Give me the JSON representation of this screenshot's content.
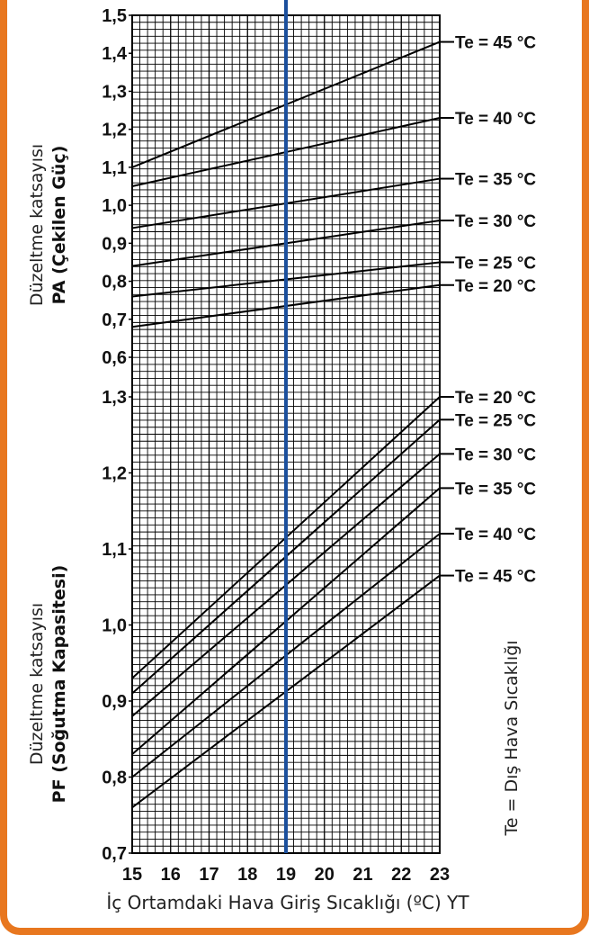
{
  "colors": {
    "frame": "#e8771f",
    "marker": "#1b4f9c",
    "grid": "#000000"
  },
  "chart_data": [
    {
      "type": "line",
      "panel": "PA",
      "ylabel_line1": "Düzeltme katsayısı",
      "ylabel_line2": "PA (Çekilen Güç)",
      "ylim": [
        0.55,
        1.5
      ],
      "yticks": [
        "1,5",
        "1,4",
        "1,3",
        "1,2",
        "1,1",
        "1,0",
        "0,9",
        "0,8",
        "0,7",
        "0,6"
      ],
      "ytick_values": [
        1.5,
        1.4,
        1.3,
        1.2,
        1.1,
        1.0,
        0.9,
        0.8,
        0.7,
        0.6
      ],
      "x": [
        15,
        23
      ],
      "series": [
        {
          "name": "Te = 45 °C",
          "values": [
            1.1,
            1.43
          ]
        },
        {
          "name": "Te = 40 °C",
          "values": [
            1.05,
            1.23
          ]
        },
        {
          "name": "Te = 35 °C",
          "values": [
            0.94,
            1.07
          ]
        },
        {
          "name": "Te = 30 °C",
          "values": [
            0.84,
            0.96
          ]
        },
        {
          "name": "Te = 25 °C",
          "values": [
            0.76,
            0.85
          ]
        },
        {
          "name": "Te = 20 °C",
          "values": [
            0.68,
            0.79
          ]
        }
      ]
    },
    {
      "type": "line",
      "panel": "PF",
      "ylabel_line1": "Düzeltme katsayısı",
      "ylabel_line2": "PF (Soğutma Kapasitesi)",
      "ylim": [
        0.7,
        1.3
      ],
      "yticks": [
        "1,3",
        "1,2",
        "1,1",
        "1,0",
        "0,9",
        "0,8",
        "0,7"
      ],
      "ytick_values": [
        1.3,
        1.2,
        1.1,
        1.0,
        0.9,
        0.8,
        0.7
      ],
      "x": [
        15,
        23
      ],
      "series": [
        {
          "name": "Te = 20 °C",
          "values": [
            0.93,
            1.3
          ]
        },
        {
          "name": "Te = 25 °C",
          "values": [
            0.91,
            1.27
          ]
        },
        {
          "name": "Te = 30 °C",
          "values": [
            0.88,
            1.225
          ]
        },
        {
          "name": "Te = 35 °C",
          "values": [
            0.83,
            1.18
          ]
        },
        {
          "name": "Te = 40 °C",
          "values": [
            0.8,
            1.12
          ]
        },
        {
          "name": "Te = 45 °C",
          "values": [
            0.76,
            1.065
          ]
        }
      ]
    }
  ],
  "xaxis": {
    "xlim": [
      15,
      23
    ],
    "ticks": [
      "15",
      "16",
      "17",
      "18",
      "19",
      "20",
      "21",
      "22",
      "23"
    ],
    "tick_values": [
      15,
      16,
      17,
      18,
      19,
      20,
      21,
      22,
      23
    ],
    "label": "İç Ortamdaki Hava Giriş Sıcaklığı (ºC) YT",
    "marker_value": 19
  },
  "side_note": "Te = Dış Hava Sıcaklığı"
}
